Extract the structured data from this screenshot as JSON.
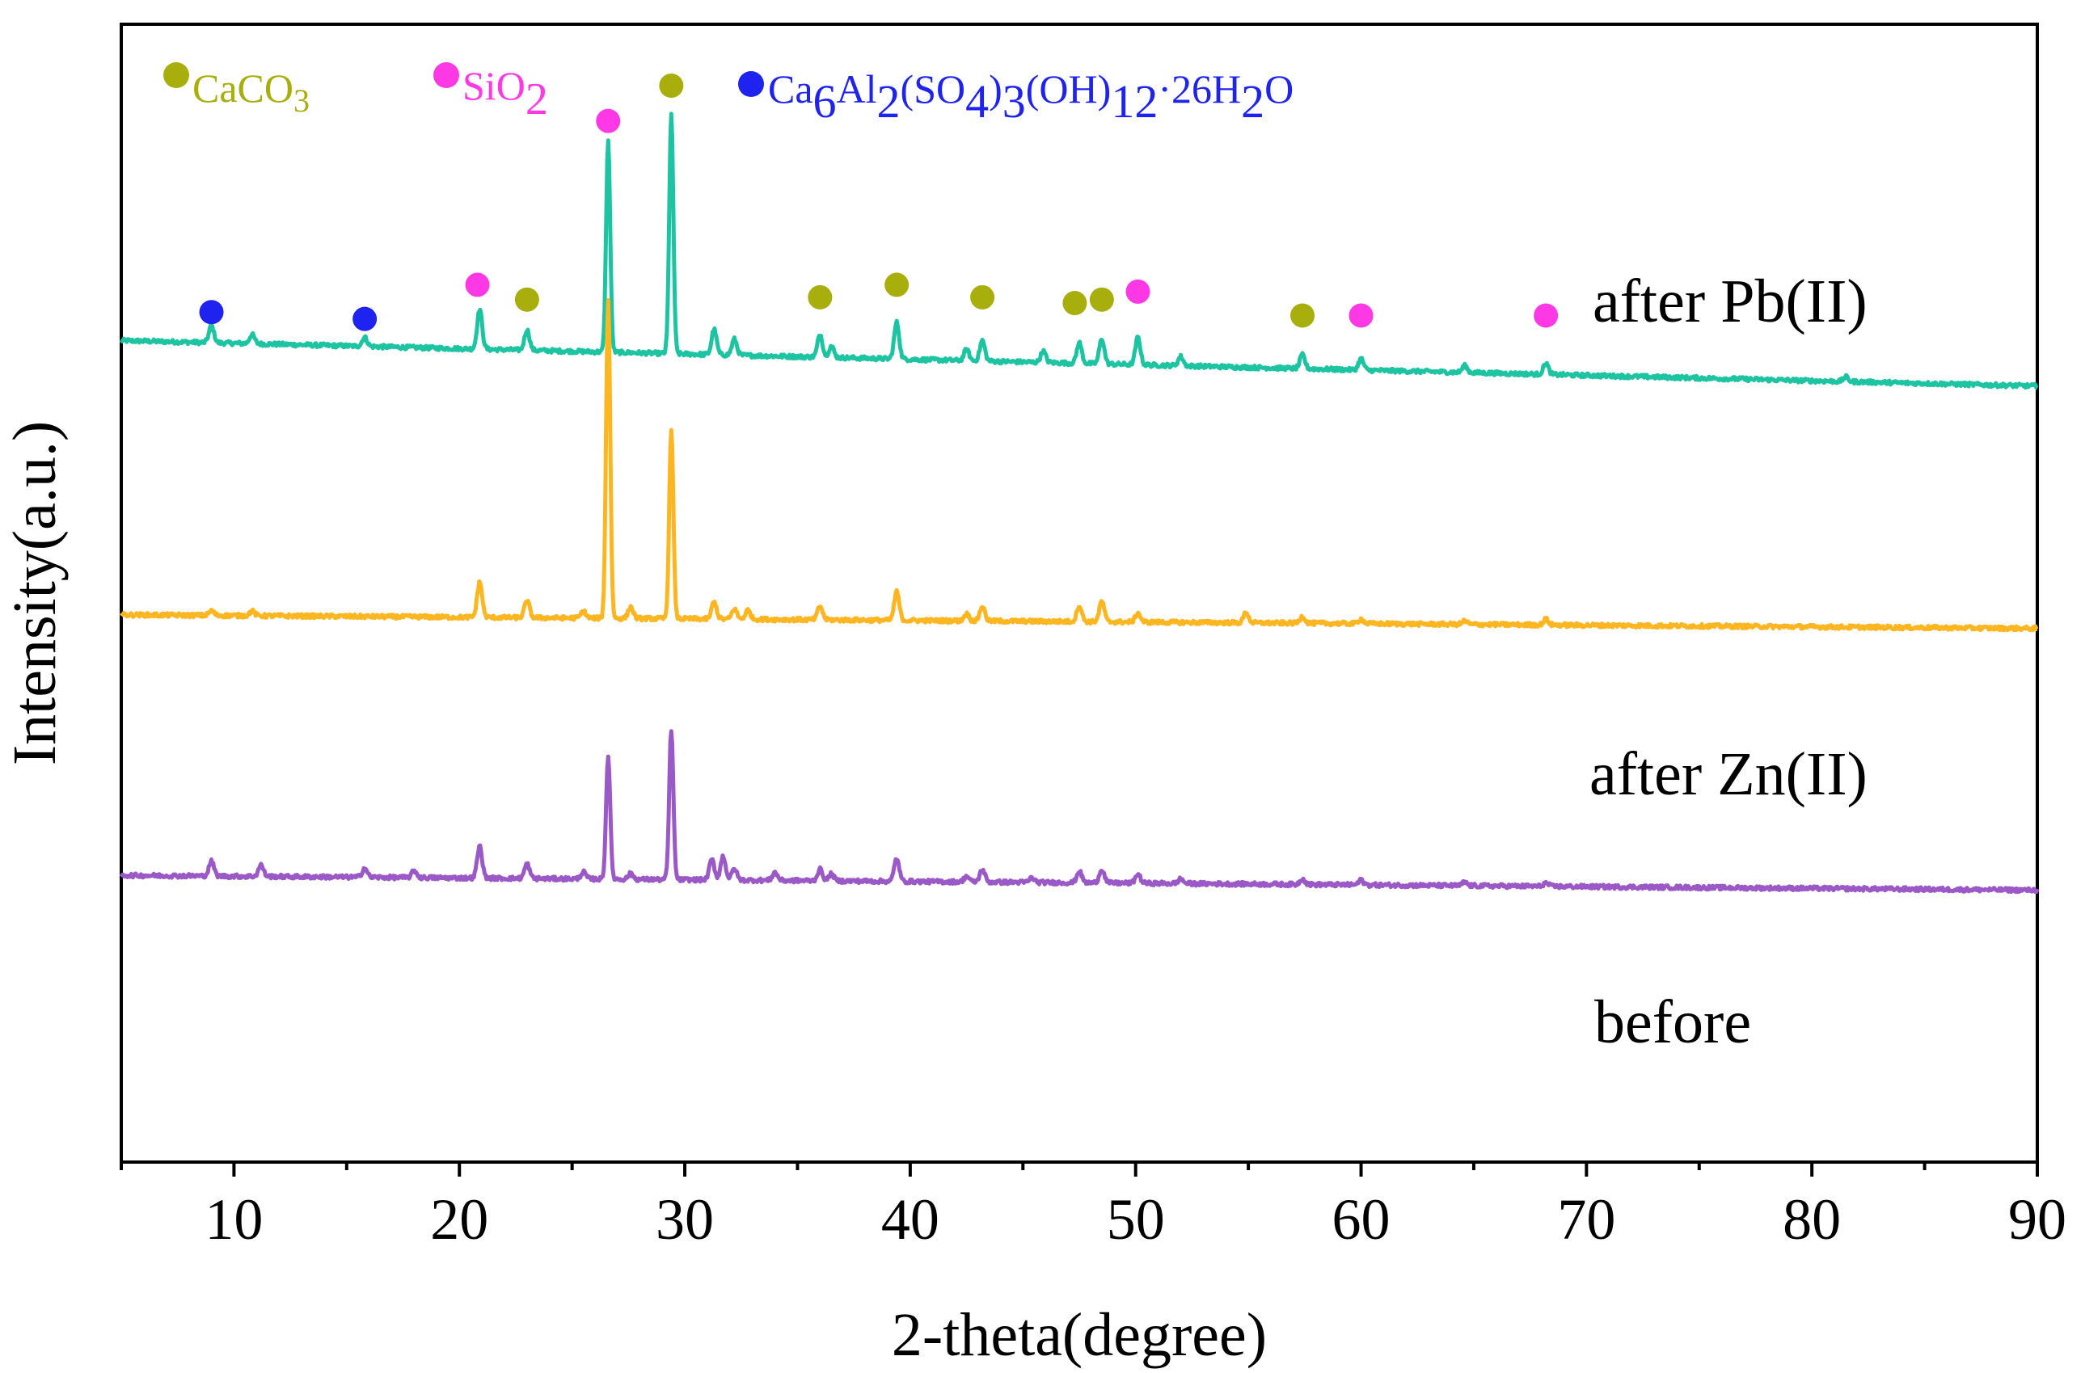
{
  "chart_data": {
    "type": "line",
    "xlabel": "2-theta(degree)",
    "ylabel": "Intensity(a.u.)",
    "xlim": [
      5,
      90
    ],
    "ylim": [
      0,
      100
    ],
    "x_ticks": [
      10,
      20,
      30,
      40,
      50,
      60,
      70,
      80,
      90
    ],
    "y_ticks_shown": false,
    "grid": false,
    "series": [
      {
        "name": "after Pb(II)",
        "color": "#1dc4a2",
        "baseline": {
          "start": 72.2,
          "end": 68.2
        },
        "peaks": [
          [
            9,
            1.5
          ],
          [
            10.8,
            0.8
          ],
          [
            15.8,
            0.8
          ],
          [
            20.9,
            3.5
          ],
          [
            23.0,
            1.8
          ],
          [
            26.6,
            18.5
          ],
          [
            29.4,
            21
          ],
          [
            31.3,
            2.2
          ],
          [
            32.2,
            1.4
          ],
          [
            36.0,
            2.0
          ],
          [
            36.5,
            1.0
          ],
          [
            39.4,
            3.2
          ],
          [
            42.5,
            1.0
          ],
          [
            43.2,
            1.8
          ],
          [
            45.9,
            1.0
          ],
          [
            47.5,
            1.8
          ],
          [
            48.5,
            2.2
          ],
          [
            50.1,
            2.4
          ],
          [
            52.0,
            0.8
          ],
          [
            57.4,
            1.2
          ],
          [
            60.0,
            1.0
          ],
          [
            64.6,
            0.6
          ],
          [
            68.2,
            1.0
          ],
          [
            81.5,
            0.4
          ]
        ]
      },
      {
        "name": "after Zn(II)",
        "color": "#fdb520",
        "baseline": {
          "start": 48.1,
          "end": 46.9
        },
        "peaks": [
          [
            9,
            0.4
          ],
          [
            10.8,
            0.4
          ],
          [
            20.9,
            3.1
          ],
          [
            23.0,
            1.5
          ],
          [
            25.5,
            0.6
          ],
          [
            26.6,
            28
          ],
          [
            27.6,
            1.0
          ],
          [
            29.4,
            16.7
          ],
          [
            31.3,
            1.5
          ],
          [
            32.2,
            0.9
          ],
          [
            32.8,
            0.8
          ],
          [
            36.0,
            1.2
          ],
          [
            39.4,
            2.5
          ],
          [
            42.5,
            0.6
          ],
          [
            43.2,
            1.3
          ],
          [
            47.5,
            1.4
          ],
          [
            48.5,
            1.8
          ],
          [
            50.1,
            0.8
          ],
          [
            54.9,
            0.9
          ],
          [
            57.4,
            0.6
          ],
          [
            60.0,
            0.4
          ],
          [
            64.6,
            0.3
          ],
          [
            68.2,
            0.5
          ]
        ]
      },
      {
        "name": "before",
        "color": "#9b59c7",
        "baseline": {
          "start": 25.2,
          "end": 23.9
        },
        "peaks": [
          [
            9,
            1.3
          ],
          [
            11.2,
            1.0
          ],
          [
            15.8,
            0.8
          ],
          [
            18.0,
            0.6
          ],
          [
            20.9,
            2.8
          ],
          [
            23.0,
            1.3
          ],
          [
            25.5,
            0.6
          ],
          [
            26.6,
            10.8
          ],
          [
            27.6,
            0.5
          ],
          [
            29.4,
            13.2
          ],
          [
            31.2,
            1.8
          ],
          [
            31.7,
            2.1
          ],
          [
            32.2,
            1.0
          ],
          [
            34.0,
            0.7
          ],
          [
            36.0,
            1.0
          ],
          [
            36.5,
            0.6
          ],
          [
            39.4,
            2.0
          ],
          [
            42.5,
            0.5
          ],
          [
            43.2,
            1.1
          ],
          [
            45.4,
            0.4
          ],
          [
            47.5,
            1.0
          ],
          [
            48.5,
            1.2
          ],
          [
            50.1,
            0.8
          ],
          [
            52.0,
            0.4
          ],
          [
            57.4,
            0.5
          ],
          [
            60.0,
            0.4
          ],
          [
            64.6,
            0.3
          ],
          [
            68.2,
            0.3
          ]
        ]
      }
    ],
    "annotations": [
      {
        "phase": "Ca6Al2(SO4)3(OH)12·26H2O",
        "color": "#1f23f0",
        "x": 9.0,
        "y": 74.7
      },
      {
        "phase": "Ca6Al2(SO4)3(OH)12·26H2O",
        "color": "#1f23f0",
        "x": 15.8,
        "y": 74.1
      },
      {
        "phase": "SiO2",
        "color": "#ff38e6",
        "x": 20.8,
        "y": 77.1
      },
      {
        "phase": "CaCO3",
        "color": "#a8ae0c",
        "x": 23.0,
        "y": 75.8
      },
      {
        "phase": "SiO2",
        "color": "#ff38e6",
        "x": 26.6,
        "y": 91.5
      },
      {
        "phase": "CaCO3",
        "color": "#a8ae0c",
        "x": 29.4,
        "y": 94.6
      },
      {
        "phase": "CaCO3",
        "color": "#a8ae0c",
        "x": 36.0,
        "y": 76.0
      },
      {
        "phase": "CaCO3",
        "color": "#a8ae0c",
        "x": 39.4,
        "y": 77.1
      },
      {
        "phase": "CaCO3",
        "color": "#a8ae0c",
        "x": 43.2,
        "y": 76.0
      },
      {
        "phase": "CaCO3",
        "color": "#a8ae0c",
        "x": 47.3,
        "y": 75.5
      },
      {
        "phase": "CaCO3",
        "color": "#a8ae0c",
        "x": 48.5,
        "y": 75.8
      },
      {
        "phase": "SiO2",
        "color": "#ff38e6",
        "x": 50.1,
        "y": 76.5
      },
      {
        "phase": "CaCO3",
        "color": "#a8ae0c",
        "x": 57.4,
        "y": 74.4
      },
      {
        "phase": "SiO2",
        "color": "#ff38e6",
        "x": 60.0,
        "y": 74.4
      },
      {
        "phase": "SiO2",
        "color": "#ff38e6",
        "x": 68.2,
        "y": 74.4
      }
    ],
    "legend": {
      "position": "top-left",
      "entries": [
        {
          "label": "CaCO3",
          "color": "#a8ae0c",
          "main": "CaCO",
          "sub": "3"
        },
        {
          "label": "SiO2",
          "color": "#ff38e6",
          "main": "SiO",
          "sub": "2"
        },
        {
          "label": "Ca6Al2(SO4)3(OH)12·26H2O",
          "color": "#1f23f0"
        }
      ]
    }
  }
}
